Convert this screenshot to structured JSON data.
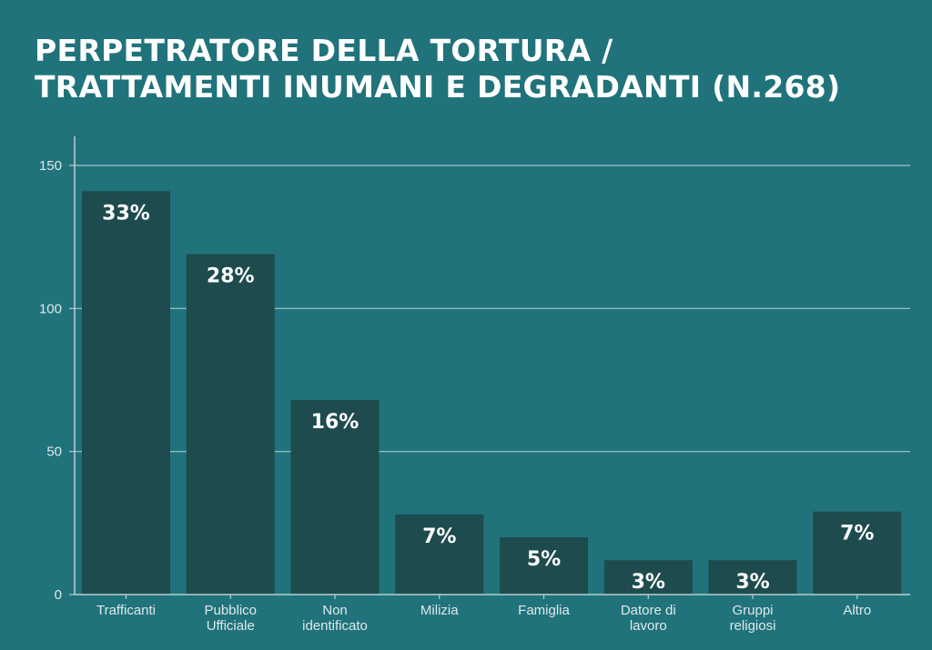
{
  "title_lines": [
    "PERPETRATORE DELLA TORTURA /",
    "TRATTAMENTI INUMANI E DEGRADANTI (N.268)"
  ],
  "colors": {
    "background": "#20737b",
    "bar": "#1e4b4e",
    "grid": "#a9c6c9",
    "axis": "#b9d0d2",
    "text": "#ffffff"
  },
  "chart_data": {
    "type": "bar",
    "title": "PERPETRATORE DELLA TORTURA / TRATTAMENTI INUMANI E DEGRADANTI (N.268)",
    "categories": [
      [
        "Trafficanti"
      ],
      [
        "Pubblico",
        "Ufficiale"
      ],
      [
        "Non",
        "identificato"
      ],
      [
        "Milizia"
      ],
      [
        "Famiglia"
      ],
      [
        "Datore di",
        "lavoro"
      ],
      [
        "Gruppi",
        "religiosi"
      ],
      [
        "Altro"
      ]
    ],
    "values": [
      141,
      119,
      68,
      28,
      20,
      12,
      12,
      29
    ],
    "data_labels": [
      "33%",
      "28%",
      "16%",
      "7%",
      "5%",
      "3%",
      "3%",
      "7%"
    ],
    "yticks": [
      0,
      50,
      100,
      150
    ],
    "ylim": [
      0,
      160
    ],
    "grid": true,
    "xlabel": "",
    "ylabel": ""
  }
}
